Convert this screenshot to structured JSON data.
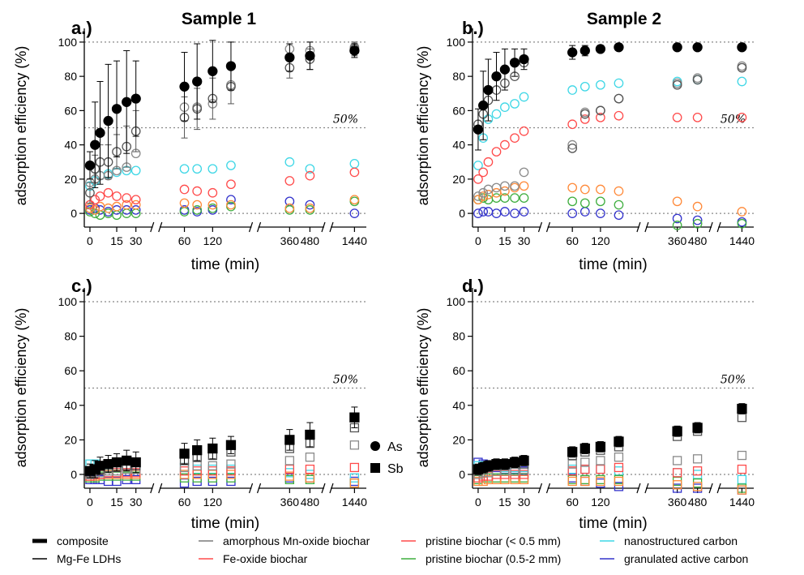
{
  "figure": {
    "ylabel": "adsorption efficiency (%)",
    "xlabel": "time (min)",
    "fifty_label": "50%",
    "x_ticks": [
      "0",
      "15",
      "30",
      "60",
      "120",
      "360",
      "480",
      "1440"
    ],
    "y_ticks": [
      "0",
      "20",
      "40",
      "60",
      "80",
      "100"
    ]
  },
  "symbol_legend": [
    {
      "shape": "circle",
      "label": "As"
    },
    {
      "shape": "square",
      "label": "Sb"
    }
  ],
  "legend": [
    {
      "label": "composite",
      "color": "#000000",
      "style": "thick"
    },
    {
      "label": "Mg-Fe LDHs",
      "color": "#000000",
      "style": "thin"
    },
    {
      "label": "amorphous Mn-oxide biochar",
      "color": "#7a7a7a",
      "style": "thin"
    },
    {
      "label": "Fe-oxide biochar",
      "color": "#ff4b4b",
      "style": "thin"
    },
    {
      "label": "pristine biochar (< 0.5 mm)",
      "color": "#ff4b4b",
      "style": "thin"
    },
    {
      "label": "pristine biochar (0.5-2 mm)",
      "color": "#3fae3f",
      "style": "thin"
    },
    {
      "label": "nanostructured carbon",
      "color": "#3fd7e6",
      "style": "thin"
    },
    {
      "label": "granulated active carbon",
      "color": "#3333cc",
      "style": "thin"
    }
  ],
  "colors": {
    "composite": "#000000",
    "mgfe": "#555555",
    "mn": "#8a8a8a",
    "fe": "#ff4b4b",
    "pb_small": "#ff8a3a",
    "pb_large": "#3fae3f",
    "nano": "#3fd7e6",
    "gac": "#3333cc"
  },
  "chart_data": [
    {
      "panel": "a.)",
      "title": "Sample 1",
      "type": "scatter",
      "marker": "circle",
      "element": "As",
      "x_positions": [
        0,
        2,
        5,
        10,
        15,
        20,
        30,
        60,
        90,
        120,
        180,
        360,
        480,
        1440
      ],
      "ylim": [
        -8,
        108
      ],
      "series": [
        {
          "name": "composite",
          "key": "composite",
          "filled": true,
          "values": [
            28,
            40,
            47,
            54,
            61,
            65,
            67,
            74,
            77,
            83,
            86,
            91,
            92,
            95
          ],
          "err": [
            8,
            25,
            30,
            33,
            28,
            30,
            22,
            20,
            22,
            18,
            14,
            8,
            8,
            4
          ]
        },
        {
          "name": "Mg-Fe LDHs",
          "key": "mgfe",
          "filled": false,
          "values": [
            12,
            26,
            30,
            30,
            36,
            39,
            48,
            56,
            61,
            67,
            74,
            85,
            90,
            96
          ],
          "err": [
            6,
            8,
            10,
            10,
            10,
            12,
            12,
            12,
            12,
            12,
            10,
            6,
            6,
            4
          ]
        },
        {
          "name": "amorphous Mn-oxide biochar",
          "key": "mn",
          "filled": false,
          "values": [
            18,
            20,
            22,
            22,
            25,
            27,
            35,
            62,
            62,
            64,
            75,
            96,
            95,
            97
          ],
          "err": []
        },
        {
          "name": "Fe-oxide biochar",
          "key": "fe",
          "filled": false,
          "values": [
            5,
            8,
            10,
            12,
            10,
            9,
            8,
            14,
            13,
            12,
            17,
            19,
            22,
            24
          ],
          "err": []
        },
        {
          "name": "pristine biochar (< 0.5 mm)",
          "key": "pb_small",
          "filled": false,
          "values": [
            3,
            2,
            4,
            3,
            4,
            5,
            5,
            6,
            5,
            5,
            5,
            3,
            3,
            8
          ],
          "err": []
        },
        {
          "name": "pristine biochar (0.5-2 mm)",
          "key": "pb_large",
          "filled": false,
          "values": [
            1,
            0,
            -1,
            0,
            -1,
            0,
            0,
            1,
            2,
            3,
            4,
            2,
            2,
            7
          ],
          "err": []
        },
        {
          "name": "nanostructured carbon",
          "key": "nano",
          "filled": false,
          "values": [
            16,
            19,
            22,
            23,
            24,
            25,
            25,
            26,
            26,
            26,
            28,
            30,
            26,
            29
          ],
          "err": []
        },
        {
          "name": "granulated active carbon",
          "key": "gac",
          "filled": false,
          "values": [
            2,
            3,
            2,
            1,
            2,
            2,
            2,
            2,
            1,
            2,
            8,
            7,
            5,
            0
          ],
          "err": []
        }
      ]
    },
    {
      "panel": "b.)",
      "title": "Sample 2",
      "type": "scatter",
      "marker": "circle",
      "element": "As",
      "x_positions": [
        0,
        2,
        5,
        10,
        15,
        20,
        30,
        60,
        90,
        120,
        180,
        360,
        480,
        1440
      ],
      "ylim": [
        -8,
        108
      ],
      "series": [
        {
          "name": "composite",
          "key": "composite",
          "filled": true,
          "values": [
            49,
            63,
            72,
            80,
            84,
            88,
            90,
            94,
            95,
            96,
            97,
            97,
            97,
            97
          ],
          "err": [
            12,
            20,
            18,
            14,
            12,
            8,
            6,
            4,
            3,
            2,
            2,
            2,
            2,
            2
          ]
        },
        {
          "name": "Mg-Fe LDHs",
          "key": "mgfe",
          "filled": false,
          "values": [
            52,
            58,
            66,
            72,
            76,
            80,
            88,
            38,
            58,
            60,
            67,
            75,
            78,
            85
          ],
          "err": []
        },
        {
          "name": "amorphous Mn-oxide biochar",
          "key": "mn",
          "filled": false,
          "values": [
            10,
            12,
            14,
            15,
            16,
            16,
            24,
            40,
            59,
            60,
            67,
            76,
            79,
            86
          ],
          "err": []
        },
        {
          "name": "Fe-oxide biochar",
          "key": "fe",
          "filled": false,
          "values": [
            20,
            24,
            30,
            36,
            40,
            44,
            48,
            52,
            55,
            56,
            57,
            56,
            56,
            56
          ],
          "err": []
        },
        {
          "name": "pristine biochar (< 0.5 mm)",
          "key": "pb_small",
          "filled": false,
          "values": [
            8,
            10,
            11,
            12,
            13,
            15,
            16,
            15,
            14,
            14,
            13,
            7,
            4,
            1
          ],
          "err": []
        },
        {
          "name": "pristine biochar (0.5-2 mm)",
          "key": "pb_large",
          "filled": false,
          "values": [
            8,
            9,
            8,
            9,
            9,
            9,
            9,
            7,
            6,
            7,
            5,
            -7,
            -6,
            -6
          ],
          "err": []
        },
        {
          "name": "nanostructured carbon",
          "key": "nano",
          "filled": false,
          "values": [
            28,
            44,
            55,
            58,
            62,
            64,
            68,
            72,
            74,
            75,
            76,
            77,
            78,
            77
          ],
          "err": []
        },
        {
          "name": "granulated active carbon",
          "key": "gac",
          "filled": false,
          "values": [
            0,
            1,
            1,
            0,
            1,
            0,
            1,
            0,
            1,
            0,
            -1,
            -3,
            -4,
            -5
          ],
          "err": []
        }
      ]
    },
    {
      "panel": "c.)",
      "title": "",
      "type": "scatter",
      "marker": "square",
      "element": "Sb",
      "x_positions": [
        0,
        2,
        5,
        10,
        15,
        20,
        30,
        60,
        90,
        120,
        180,
        360,
        480,
        1440
      ],
      "ylim": [
        -8,
        108
      ],
      "series": [
        {
          "name": "composite",
          "key": "composite",
          "filled": true,
          "values": [
            2,
            3,
            5,
            6,
            7,
            8,
            7,
            12,
            14,
            15,
            17,
            20,
            23,
            33
          ],
          "err": [
            4,
            5,
            5,
            5,
            5,
            6,
            6,
            6,
            6,
            6,
            5,
            6,
            7,
            6
          ]
        },
        {
          "name": "Mg-Fe LDHs",
          "key": "mgfe",
          "filled": false,
          "values": [
            1,
            2,
            3,
            4,
            4,
            5,
            5,
            8,
            10,
            11,
            13,
            15,
            18,
            27
          ],
          "err": []
        },
        {
          "name": "amorphous Mn-oxide biochar",
          "key": "mn",
          "filled": false,
          "values": [
            0,
            1,
            1,
            2,
            2,
            3,
            3,
            4,
            5,
            5,
            6,
            8,
            10,
            17
          ],
          "err": []
        },
        {
          "name": "Fe-oxide biochar",
          "key": "fe",
          "filled": false,
          "values": [
            -1,
            0,
            0,
            1,
            1,
            1,
            1,
            2,
            2,
            2,
            2,
            3,
            3,
            4
          ],
          "err": []
        },
        {
          "name": "pristine biochar (< 0.5 mm)",
          "key": "pb_small",
          "filled": false,
          "values": [
            -1,
            -1,
            0,
            0,
            0,
            0,
            0,
            0,
            0,
            0,
            0,
            -1,
            -2,
            -5
          ],
          "err": []
        },
        {
          "name": "pristine biochar (0.5-2 mm)",
          "key": "pb_large",
          "filled": false,
          "values": [
            -2,
            -2,
            -1,
            -1,
            -1,
            -1,
            -1,
            -2,
            -2,
            -2,
            -2,
            -3,
            -3,
            -5
          ],
          "err": []
        },
        {
          "name": "nanostructured carbon",
          "key": "nano",
          "filled": false,
          "values": [
            6,
            6,
            5,
            5,
            5,
            5,
            5,
            4,
            3,
            3,
            3,
            1,
            0,
            -2
          ],
          "err": []
        },
        {
          "name": "granulated active carbon",
          "key": "gac",
          "filled": false,
          "values": [
            -3,
            -3,
            -3,
            -4,
            -4,
            -3,
            -3,
            -5,
            -4,
            -4,
            -4,
            -2,
            -2,
            -4
          ],
          "err": []
        }
      ]
    },
    {
      "panel": "d.)",
      "title": "",
      "type": "scatter",
      "marker": "square",
      "element": "Sb",
      "x_positions": [
        0,
        2,
        5,
        10,
        15,
        20,
        30,
        60,
        90,
        120,
        180,
        360,
        480,
        1440
      ],
      "ylim": [
        -8,
        108
      ],
      "series": [
        {
          "name": "composite",
          "key": "composite",
          "filled": true,
          "values": [
            3,
            4,
            5,
            6,
            6,
            7,
            8,
            13,
            15,
            16,
            19,
            25,
            27,
            38
          ],
          "err": [
            3,
            3,
            3,
            3,
            3,
            3,
            3,
            3,
            3,
            3,
            3,
            3,
            3,
            3
          ]
        },
        {
          "name": "Mg-Fe LDHs",
          "key": "mgfe",
          "filled": false,
          "values": [
            2,
            3,
            4,
            5,
            5,
            6,
            6,
            11,
            13,
            14,
            16,
            22,
            25,
            33
          ],
          "err": []
        },
        {
          "name": "amorphous Mn-oxide biochar",
          "key": "mn",
          "filled": false,
          "values": [
            0,
            1,
            1,
            2,
            2,
            2,
            3,
            6,
            7,
            8,
            10,
            8,
            9,
            11
          ],
          "err": []
        },
        {
          "name": "Fe-oxide biochar",
          "key": "fe",
          "filled": false,
          "values": [
            -2,
            -1,
            -1,
            0,
            0,
            0,
            0,
            2,
            3,
            3,
            4,
            1,
            2,
            3
          ],
          "err": []
        },
        {
          "name": "pristine biochar (< 0.5 mm)",
          "key": "pb_small",
          "filled": false,
          "values": [
            -4,
            -4,
            -3,
            -3,
            -3,
            -3,
            -3,
            -4,
            -4,
            -4,
            -4,
            -6,
            -7,
            -9
          ],
          "err": []
        },
        {
          "name": "pristine biochar (0.5-2 mm)",
          "key": "pb_large",
          "filled": false,
          "values": [
            -3,
            -2,
            -2,
            -2,
            -2,
            -2,
            -2,
            -3,
            -3,
            -3,
            -3,
            -4,
            -5,
            -8
          ],
          "err": []
        },
        {
          "name": "nanostructured carbon",
          "key": "nano",
          "filled": false,
          "values": [
            5,
            5,
            5,
            5,
            4,
            4,
            4,
            3,
            3,
            3,
            2,
            1,
            0,
            -3
          ],
          "err": []
        },
        {
          "name": "granulated active carbon",
          "key": "gac",
          "filled": false,
          "values": [
            7,
            6,
            5,
            4,
            3,
            3,
            2,
            -2,
            -4,
            -5,
            -7,
            -8,
            -8,
            -9
          ],
          "err": []
        }
      ]
    }
  ]
}
